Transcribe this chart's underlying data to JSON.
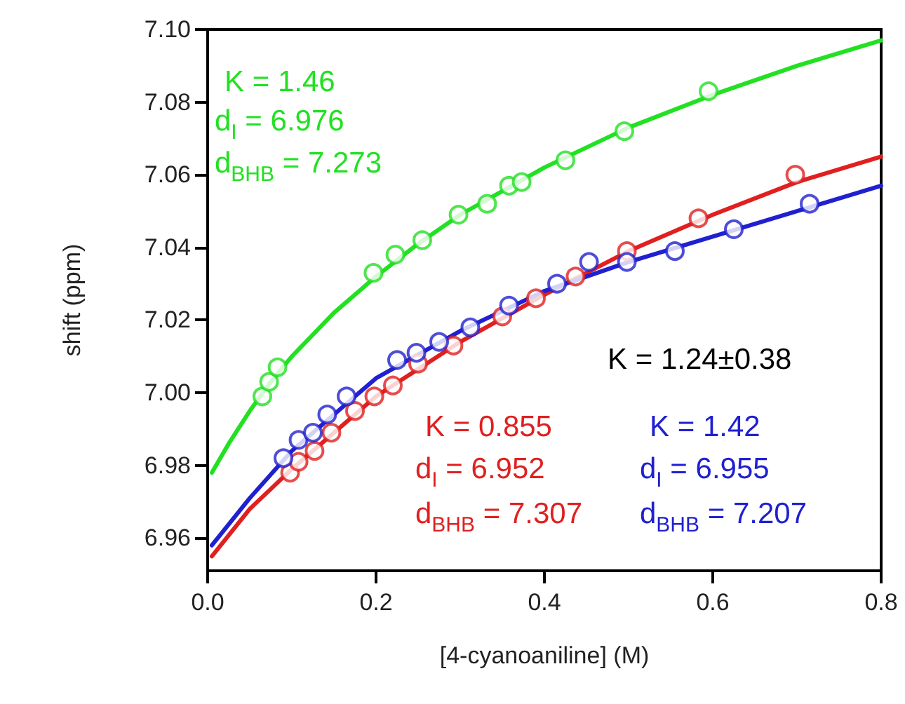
{
  "chart_data": {
    "type": "scatter",
    "xlabel": "[4-cyanoaniline] (M)",
    "ylabel": "shift (ppm)",
    "xlim": [
      0,
      0.8
    ],
    "ylim": [
      6.951,
      7.1
    ],
    "xticks": [
      {
        "value": 0,
        "label": "0.0"
      },
      {
        "value": 0.2,
        "label": "0.2"
      },
      {
        "value": 0.4,
        "label": "0.4"
      },
      {
        "value": 0.6,
        "label": "0.6"
      },
      {
        "value": 0.8,
        "label": "0.8"
      }
    ],
    "yticks": [
      {
        "value": 6.96,
        "label": "6.96"
      },
      {
        "value": 6.98,
        "label": "6.98"
      },
      {
        "value": 7.0,
        "label": "7.00"
      },
      {
        "value": 7.02,
        "label": "7.02"
      },
      {
        "value": 7.04,
        "label": "7.04"
      },
      {
        "value": 7.06,
        "label": "7.06"
      },
      {
        "value": 7.08,
        "label": "7.08"
      },
      {
        "value": 7.1,
        "label": "7.10"
      }
    ],
    "grid": false,
    "series": [
      {
        "marker": "circle",
        "color": "#22e022",
        "x": [
          0.065,
          0.073,
          0.083,
          0.197,
          0.223,
          0.255,
          0.298,
          0.332,
          0.358,
          0.373,
          0.425,
          0.495,
          0.595
        ],
        "values": [
          6.999,
          7.003,
          7.007,
          7.033,
          7.038,
          7.042,
          7.049,
          7.052,
          7.057,
          7.058,
          7.064,
          7.072,
          7.083
        ]
      },
      {
        "marker": "circle",
        "color": "#e02020",
        "x": [
          0.098,
          0.108,
          0.127,
          0.147,
          0.175,
          0.198,
          0.22,
          0.25,
          0.292,
          0.35,
          0.39,
          0.437,
          0.498,
          0.583,
          0.698
        ],
        "values": [
          6.978,
          6.981,
          6.984,
          6.989,
          6.995,
          6.999,
          7.002,
          7.008,
          7.013,
          7.021,
          7.026,
          7.032,
          7.039,
          7.048,
          7.06
        ]
      },
      {
        "marker": "circle",
        "color": "#2020d0",
        "x": [
          0.09,
          0.108,
          0.125,
          0.142,
          0.165,
          0.225,
          0.248,
          0.275,
          0.312,
          0.358,
          0.415,
          0.453,
          0.498,
          0.555,
          0.625,
          0.715
        ],
        "values": [
          6.982,
          6.987,
          6.989,
          6.994,
          6.999,
          7.009,
          7.011,
          7.014,
          7.018,
          7.024,
          7.03,
          7.036,
          7.036,
          7.039,
          7.045,
          7.052
        ]
      },
      {
        "type": "line",
        "marker": "none",
        "color": "#22e022",
        "x": [
          0.005,
          0.025,
          0.05,
          0.075,
          0.1,
          0.15,
          0.2,
          0.25,
          0.3,
          0.4,
          0.5,
          0.6,
          0.7,
          0.8
        ],
        "values": [
          6.978,
          6.986,
          6.995,
          7.003,
          7.01,
          7.022,
          7.032,
          7.041,
          7.049,
          7.062,
          7.073,
          7.082,
          7.09,
          7.097
        ]
      },
      {
        "type": "line",
        "marker": "none",
        "color": "#e02020",
        "x": [
          0.005,
          0.05,
          0.1,
          0.2,
          0.3,
          0.4,
          0.5,
          0.6,
          0.7,
          0.8
        ],
        "values": [
          6.955,
          6.968,
          6.979,
          6.999,
          7.014,
          7.027,
          7.039,
          7.049,
          7.058,
          7.065
        ]
      },
      {
        "type": "line",
        "marker": "none",
        "color": "#2020d0",
        "x": [
          0.005,
          0.05,
          0.1,
          0.2,
          0.3,
          0.4,
          0.5,
          0.6,
          0.7,
          0.8
        ],
        "values": [
          6.958,
          6.971,
          6.984,
          7.004,
          7.017,
          7.028,
          7.036,
          7.043,
          7.05,
          7.057
        ]
      }
    ],
    "annotations": [
      "K = 1.46",
      "d$_{I}$ = 6.976",
      "d$_{BHB}$ = 7.273",
      "K = 1.24±0.38",
      "K = 0.855",
      "d$_{I}$ = 6.952",
      "d$_{BHB}$ = 7.307",
      "K = 1.42",
      "d$_{I}$ = 6.955",
      "d$_{BHB}$ = 7.207"
    ]
  }
}
